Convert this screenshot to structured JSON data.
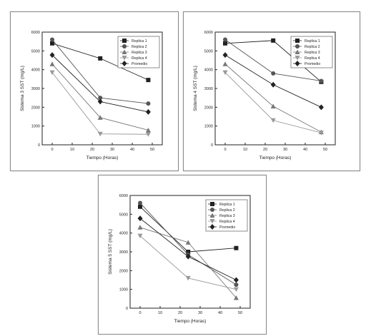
{
  "chart_data": [
    {
      "type": "line",
      "xlabel": "Tiempo (Horas)",
      "ylabel": "Sistema 3 SST (mg/L)",
      "xlim": [
        -5,
        55
      ],
      "ylim": [
        0,
        6000
      ],
      "xticks": [
        "0",
        "10",
        "20",
        "30",
        "40",
        "50"
      ],
      "yticks": [
        "0",
        "1000",
        "2000",
        "3000",
        "4000",
        "5000",
        "6000"
      ],
      "x": [
        0,
        24,
        48
      ],
      "legend_position": "top-right",
      "series": [
        {
          "name": "Replica 1",
          "marker": "square",
          "values": [
            5400,
            4600,
            3450
          ]
        },
        {
          "name": "Replica 2",
          "marker": "circle",
          "values": [
            5600,
            2500,
            2200
          ]
        },
        {
          "name": "Replica 3",
          "marker": "triangle-up",
          "values": [
            4300,
            1450,
            780
          ]
        },
        {
          "name": "Replica 4",
          "marker": "triangle-down",
          "values": [
            3850,
            580,
            560
          ]
        },
        {
          "name": "Promedio",
          "marker": "diamond",
          "values": [
            4780,
            2300,
            1750
          ]
        }
      ]
    },
    {
      "type": "line",
      "xlabel": "Tiempo (Horas)",
      "ylabel": "Sistema 4 SST (mg/L)",
      "xlim": [
        -5,
        55
      ],
      "ylim": [
        0,
        6000
      ],
      "xticks": [
        "0",
        "10",
        "20",
        "30",
        "40",
        "50"
      ],
      "yticks": [
        "0",
        "1000",
        "2000",
        "3000",
        "4000",
        "5000",
        "6000"
      ],
      "x": [
        0,
        24,
        48
      ],
      "legend_position": "top-right",
      "series": [
        {
          "name": "Replica 1",
          "marker": "square",
          "values": [
            5400,
            5550,
            3350
          ]
        },
        {
          "name": "Replica 2",
          "marker": "circle",
          "values": [
            5600,
            3800,
            3400
          ]
        },
        {
          "name": "Replica 3",
          "marker": "triangle-up",
          "values": [
            4300,
            2050,
            680
          ]
        },
        {
          "name": "Replica 4",
          "marker": "triangle-down",
          "values": [
            3850,
            1300,
            640
          ]
        },
        {
          "name": "Promedio",
          "marker": "diamond",
          "values": [
            4780,
            3200,
            2000
          ]
        }
      ]
    },
    {
      "type": "line",
      "xlabel": "Tiempo (Horas)",
      "ylabel": "Sistema 5 SST (mg/L)",
      "xlim": [
        -5,
        55
      ],
      "ylim": [
        0,
        6000
      ],
      "xticks": [
        "0",
        "10",
        "20",
        "30",
        "40",
        "50"
      ],
      "yticks": [
        "0",
        "1000",
        "2000",
        "3000",
        "4000",
        "5000",
        "6000"
      ],
      "x": [
        0,
        24,
        48
      ],
      "legend_position": "top-right",
      "series": [
        {
          "name": "Replica 1",
          "marker": "square",
          "values": [
            5400,
            3000,
            3200
          ]
        },
        {
          "name": "Replica 2",
          "marker": "circle",
          "values": [
            5600,
            2850,
            1250
          ]
        },
        {
          "name": "Replica 3",
          "marker": "triangle-up",
          "values": [
            4300,
            3500,
            550
          ]
        },
        {
          "name": "Replica 4",
          "marker": "triangle-down",
          "values": [
            3850,
            1600,
            1000
          ]
        },
        {
          "name": "Promedio",
          "marker": "diamond",
          "values": [
            4780,
            2750,
            1500
          ]
        }
      ]
    }
  ],
  "colors": {
    "series": [
      "#222222",
      "#555555",
      "#777777",
      "#999999",
      "#222222"
    ],
    "axis": "#222222",
    "frame": "#8a8a8a"
  }
}
